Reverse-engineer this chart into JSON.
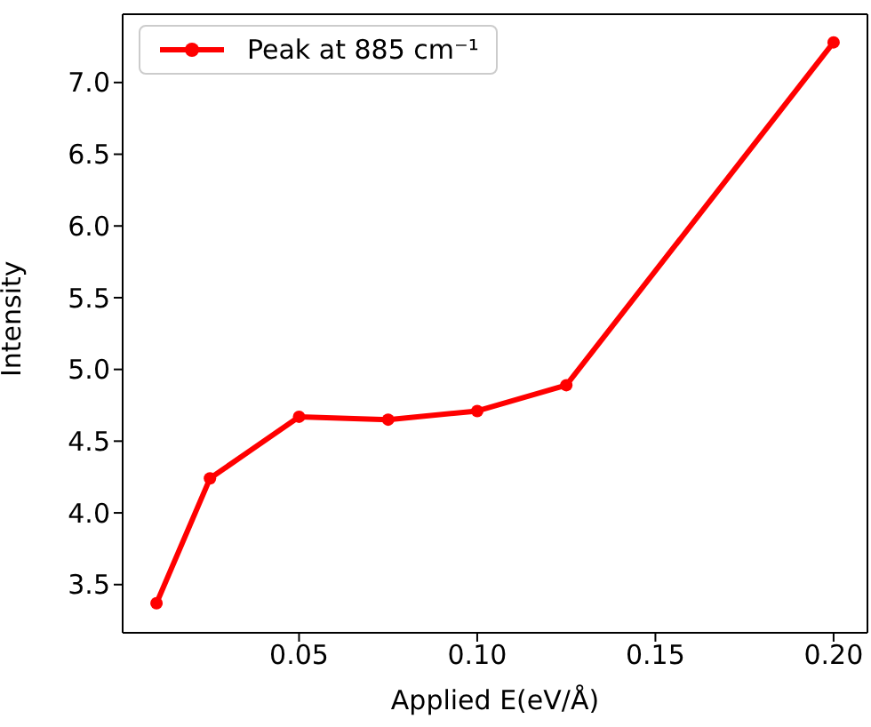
{
  "chart_data": {
    "type": "line",
    "xlabel": "Applied E(eV/Å)",
    "ylabel": "Intensity",
    "x": [
      0.01,
      0.025,
      0.05,
      0.075,
      0.1,
      0.125,
      0.2
    ],
    "series": [
      {
        "name": "Peak at 885 cm⁻¹",
        "color": "#ff0000",
        "values": [
          3.37,
          4.24,
          4.67,
          4.65,
          4.71,
          4.89,
          7.28
        ]
      }
    ],
    "xlim": [
      0.0005,
      0.2095
    ],
    "xticks": [
      {
        "value": 0.05,
        "label": "0.05"
      },
      {
        "value": 0.1,
        "label": "0.10"
      },
      {
        "value": 0.15,
        "label": "0.15"
      },
      {
        "value": 0.2,
        "label": "0.20"
      }
    ],
    "ylim": [
      3.164,
      7.476
    ],
    "yticks": [
      {
        "value": 3.5,
        "label": "3.5"
      },
      {
        "value": 4,
        "label": "4.0"
      },
      {
        "value": 4.5,
        "label": "4.5"
      },
      {
        "value": 5,
        "label": "5.0"
      },
      {
        "value": 5.5,
        "label": "5.5"
      },
      {
        "value": 6,
        "label": "6.0"
      },
      {
        "value": 6.5,
        "label": "6.5"
      },
      {
        "value": 7,
        "label": "7.0"
      }
    ],
    "legend": "top left",
    "marker": "circle",
    "line_style": "solid"
  }
}
